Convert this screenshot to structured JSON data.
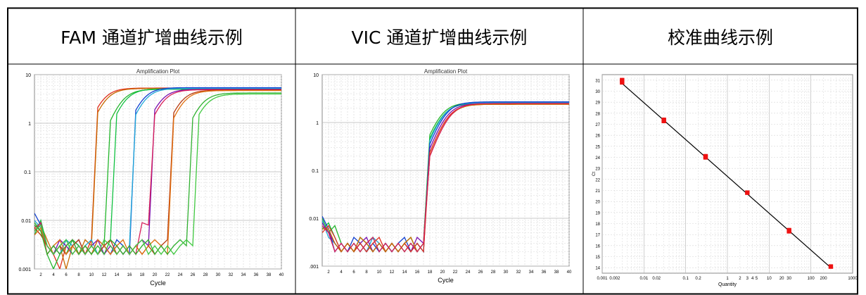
{
  "headers": [
    "FAM 通道扩增曲线示例",
    "VIC 通道扩增曲线示例",
    "校准曲线示例"
  ],
  "chart_data": [
    {
      "type": "line",
      "title": "Amplification Plot",
      "xlabel": "Cycle",
      "ylabel": "",
      "log_y": true,
      "xlim": [
        1,
        40
      ],
      "ylim": [
        0.001,
        10
      ],
      "x_ticks": [
        2,
        4,
        6,
        8,
        10,
        12,
        14,
        16,
        18,
        20,
        22,
        24,
        26,
        28,
        30,
        32,
        34,
        36,
        38,
        40
      ],
      "y_ticks": [
        "10",
        "1",
        "0.1",
        "0.01",
        "0.001"
      ],
      "grid": true,
      "series": [
        {
          "color": "#e0301e",
          "ct": 11.5,
          "plateau": 5.3,
          "noise": [
            0.007,
            0.009,
            0.003,
            0.002,
            0.001,
            0.003,
            0.004,
            0.003,
            0.002,
            0.004
          ]
        },
        {
          "color": "#c86a00",
          "ct": 11.9,
          "plateau": 5.2,
          "noise": [
            0.006,
            0.008,
            0.004,
            0.002,
            0.003,
            0.001,
            0.003,
            0.002,
            0.004,
            0.003
          ]
        },
        {
          "color": "#22b52a",
          "ct": 14.5,
          "plateau": 5.0,
          "noise": [
            0.009,
            0.006,
            0.002,
            0.001,
            0.002,
            0.004,
            0.003,
            0.002,
            0.003,
            0.002,
            0.004,
            0.003
          ]
        },
        {
          "color": "#10c040",
          "ct": 15.0,
          "plateau": 5.1,
          "noise": [
            0.005,
            0.01,
            0.003,
            0.002,
            0.003,
            0.002,
            0.004,
            0.003,
            0.002,
            0.003,
            0.002,
            0.003,
            0.004
          ]
        },
        {
          "color": "#1040d0",
          "ct": 17.8,
          "plateau": 5.4,
          "noise": [
            0.014,
            0.008,
            0.003,
            0.002,
            0.003,
            0.002,
            0.003,
            0.004,
            0.002,
            0.003,
            0.002,
            0.003,
            0.002,
            0.004,
            0.003,
            0.002
          ]
        },
        {
          "color": "#20a8d8",
          "ct": 18.1,
          "plateau": 5.2,
          "noise": [
            0.01,
            0.007,
            0.002,
            0.003,
            0.002,
            0.004,
            0.003,
            0.002,
            0.003,
            0.004,
            0.002,
            0.003,
            0.002,
            0.003,
            0.002,
            0.003
          ]
        },
        {
          "color": "#7a10b0",
          "ct": 20.6,
          "plateau": 5.0,
          "noise": [
            0.008,
            0.006,
            0.003,
            0.002,
            0.004,
            0.003,
            0.002,
            0.003,
            0.002,
            0.003,
            0.004,
            0.002,
            0.003,
            0.002,
            0.003,
            0.002,
            0.003,
            0.004,
            0.003
          ]
        },
        {
          "color": "#d81e5a",
          "ct": 21.0,
          "plateau": 4.9,
          "noise": [
            0.006,
            0.009,
            0.002,
            0.003,
            0.002,
            0.003,
            0.004,
            0.002,
            0.003,
            0.002,
            0.004,
            0.003,
            0.002,
            0.003,
            0.002,
            0.003,
            0.002,
            0.009,
            0.008
          ]
        },
        {
          "color": "#b83a10",
          "ct": 23.8,
          "plateau": 4.8,
          "noise": [
            0.007,
            0.005,
            0.003,
            0.002,
            0.003,
            0.002,
            0.003,
            0.004,
            0.002,
            0.003,
            0.002,
            0.003,
            0.004,
            0.002,
            0.003,
            0.002,
            0.003,
            0.002,
            0.003,
            0.002,
            0.003,
            0.004
          ]
        },
        {
          "color": "#e07010",
          "ct": 24.2,
          "plateau": 4.7,
          "noise": [
            0.005,
            0.007,
            0.002,
            0.003,
            0.004,
            0.002,
            0.003,
            0.002,
            0.003,
            0.002,
            0.004,
            0.003,
            0.002,
            0.003,
            0.004,
            0.002,
            0.003,
            0.002,
            0.003,
            0.004,
            0.003,
            0.002
          ]
        },
        {
          "color": "#30b030",
          "ct": 27.0,
          "plateau": 4.2,
          "noise": [
            0.008,
            0.006,
            0.002,
            0.003,
            0.002,
            0.003,
            0.004,
            0.002,
            0.003,
            0.002,
            0.003,
            0.002,
            0.004,
            0.003,
            0.002,
            0.003,
            0.002,
            0.003,
            0.004,
            0.002,
            0.003,
            0.002,
            0.003,
            0.004,
            0.003
          ]
        },
        {
          "color": "#40c840",
          "ct": 27.6,
          "plateau": 4.0,
          "noise": [
            0.006,
            0.008,
            0.003,
            0.002,
            0.003,
            0.004,
            0.002,
            0.003,
            0.002,
            0.003,
            0.002,
            0.004,
            0.003,
            0.002,
            0.003,
            0.002,
            0.003,
            0.004,
            0.002,
            0.003,
            0.002,
            0.003,
            0.002,
            0.003,
            0.004,
            0.003
          ]
        }
      ]
    },
    {
      "type": "line",
      "title": "Amplification Plot",
      "xlabel": "Cycle",
      "ylabel": "",
      "log_y": true,
      "xlim": [
        1,
        40
      ],
      "ylim": [
        0.001,
        10
      ],
      "x_ticks": [
        2,
        4,
        6,
        8,
        10,
        12,
        14,
        16,
        18,
        20,
        22,
        24,
        26,
        28,
        30,
        32,
        34,
        36,
        38,
        40
      ],
      "y_ticks": [
        "10",
        "1",
        "0.1",
        "0.01",
        ".001"
      ],
      "grid": true,
      "series": [
        {
          "color": "#22b52a",
          "ct": 19.6,
          "plateau": 2.6,
          "noise": [
            0.01,
            0.005,
            0.007,
            0.003,
            0.002,
            0.003,
            0.002,
            0.003,
            0.004,
            0.002,
            0.003,
            0.002,
            0.003,
            0.002,
            0.003,
            0.002,
            0.003
          ]
        },
        {
          "color": "#10c040",
          "ct": 19.8,
          "plateau": 2.5,
          "noise": [
            0.006,
            0.008,
            0.004,
            0.002,
            0.003,
            0.002,
            0.004,
            0.003,
            0.002,
            0.003,
            0.002,
            0.003,
            0.002,
            0.003,
            0.004,
            0.002,
            0.003
          ]
        },
        {
          "color": "#20a8d8",
          "ct": 20.0,
          "plateau": 2.6,
          "noise": [
            0.009,
            0.004,
            0.003,
            0.002,
            0.003,
            0.002,
            0.003,
            0.002,
            0.004,
            0.003,
            0.002,
            0.003,
            0.002,
            0.003,
            0.002,
            0.003,
            0.002
          ]
        },
        {
          "color": "#1040d0",
          "ct": 20.3,
          "plateau": 2.7,
          "noise": [
            0.011,
            0.006,
            0.002,
            0.003,
            0.002,
            0.004,
            0.003,
            0.002,
            0.003,
            0.002,
            0.003,
            0.002,
            0.003,
            0.004,
            0.002,
            0.003,
            0.002
          ]
        },
        {
          "color": "#7a10b0",
          "ct": 20.5,
          "plateau": 2.5,
          "noise": [
            0.008,
            0.005,
            0.003,
            0.002,
            0.003,
            0.002,
            0.003,
            0.004,
            0.002,
            0.003,
            0.002,
            0.003,
            0.002,
            0.003,
            0.002,
            0.004,
            0.003
          ]
        },
        {
          "color": "#e0301e",
          "ct": 20.7,
          "plateau": 2.4,
          "noise": [
            0.005,
            0.007,
            0.004,
            0.002,
            0.003,
            0.002,
            0.003,
            0.002,
            0.003,
            0.004,
            0.002,
            0.003,
            0.002,
            0.003,
            0.002,
            0.003,
            0.002
          ]
        },
        {
          "color": "#c86a00",
          "ct": 20.9,
          "plateau": 2.4,
          "noise": [
            0.006,
            0.006,
            0.003,
            0.002,
            0.003,
            0.002,
            0.004,
            0.003,
            0.002,
            0.003,
            0.002,
            0.003,
            0.002,
            0.003,
            0.004,
            0.002,
            0.003
          ]
        },
        {
          "color": "#d81e5a",
          "ct": 21.0,
          "plateau": 2.5,
          "noise": [
            0.007,
            0.005,
            0.002,
            0.003,
            0.002,
            0.003,
            0.002,
            0.003,
            0.004,
            0.002,
            0.003,
            0.002,
            0.003,
            0.002,
            0.003,
            0.002,
            0.003
          ]
        }
      ]
    },
    {
      "type": "scatter",
      "title": "",
      "xlabel": "Quantity",
      "ylabel": "Ct",
      "log_x": true,
      "xlim": [
        0.001,
        1000
      ],
      "ylim": [
        13.5,
        31.5
      ],
      "x_ticks": [
        {
          "v": 0.001,
          "label": "0.001"
        },
        {
          "v": 0.002,
          "label": "0.002"
        },
        {
          "v": 0.01,
          "label": "0.01"
        },
        {
          "v": 0.02,
          "label": "0.02"
        },
        {
          "v": 0.1,
          "label": "0.1"
        },
        {
          "v": 0.2,
          "label": "0.2"
        },
        {
          "v": 1,
          "label": "1"
        },
        {
          "v": 2,
          "label": "2"
        },
        {
          "v": 3,
          "label": "3"
        },
        {
          "v": 4,
          "label": "4"
        },
        {
          "v": 5,
          "label": "5"
        },
        {
          "v": 10,
          "label": "10"
        },
        {
          "v": 20,
          "label": "20"
        },
        {
          "v": 30,
          "label": "30"
        },
        {
          "v": 100,
          "label": "100"
        },
        {
          "v": 200,
          "label": "200"
        },
        {
          "v": 1000,
          "label": "1000"
        }
      ],
      "y_ticks": [
        14,
        15,
        16,
        17,
        18,
        19,
        20,
        21,
        22,
        23,
        24,
        25,
        26,
        27,
        28,
        29,
        30,
        31
      ],
      "grid": true,
      "points": [
        {
          "x": 0.003,
          "y": 30.8
        },
        {
          "x": 0.003,
          "y": 31.0
        },
        {
          "x": 0.03,
          "y": 27.3
        },
        {
          "x": 0.03,
          "y": 27.4
        },
        {
          "x": 0.3,
          "y": 24.1
        },
        {
          "x": 0.3,
          "y": 24.0
        },
        {
          "x": 3,
          "y": 20.8
        },
        {
          "x": 30,
          "y": 17.4
        },
        {
          "x": 30,
          "y": 17.3
        },
        {
          "x": 300,
          "y": 14.1
        }
      ],
      "fit": {
        "x1": 0.003,
        "y1": 30.7,
        "x2": 300,
        "y2": 14.0
      },
      "marker_color": "#ee1111",
      "line_color": "#000000"
    }
  ]
}
